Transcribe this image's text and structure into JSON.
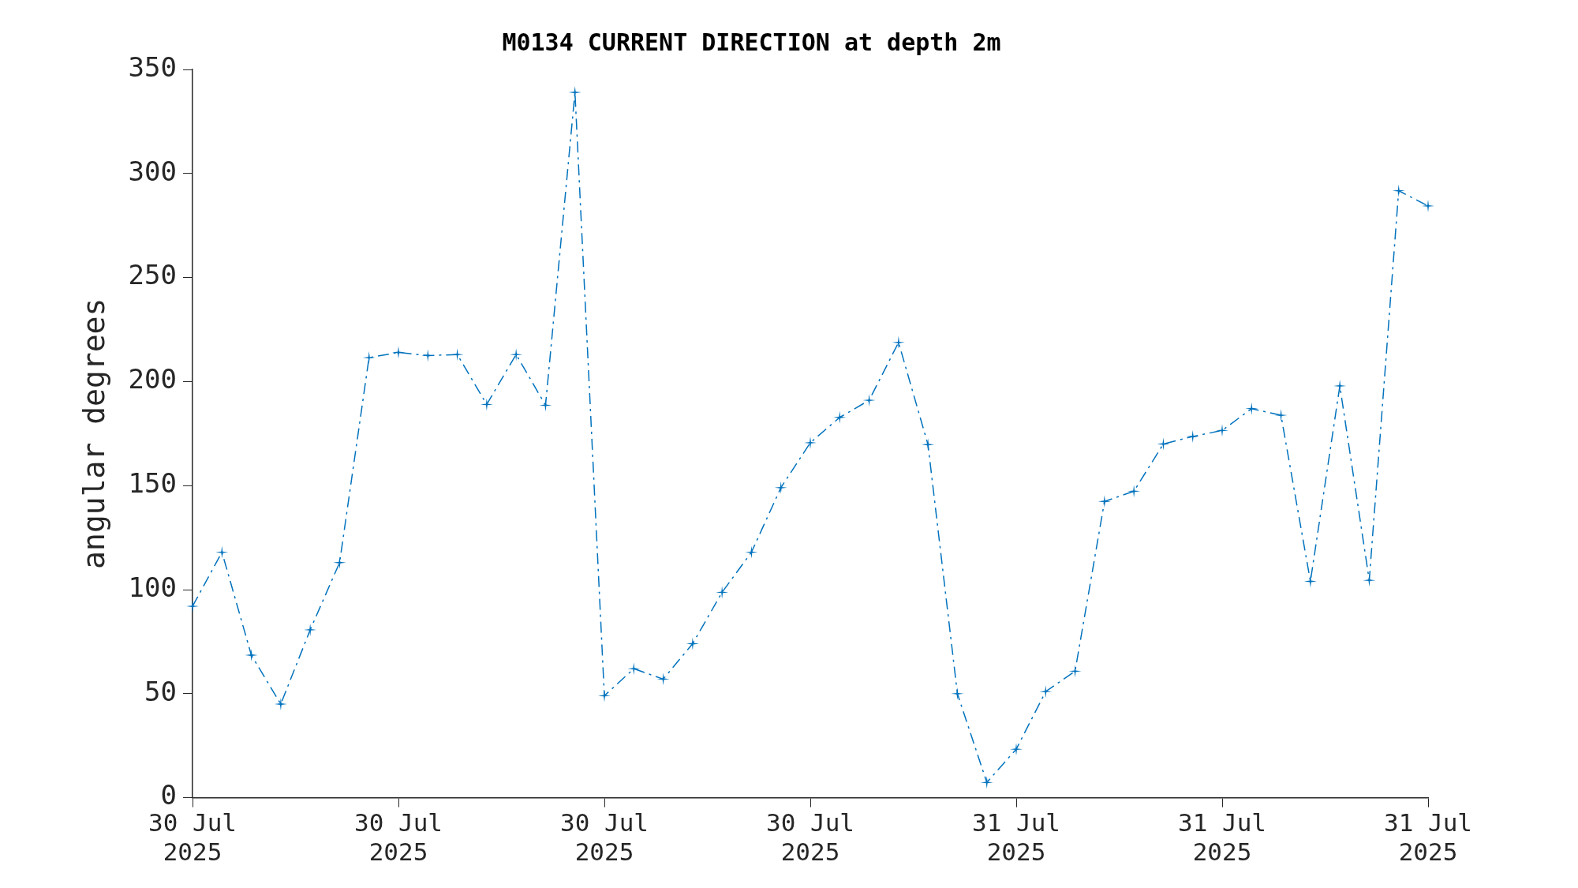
{
  "chart_data": {
    "type": "line",
    "title": "M0134 CURRENT DIRECTION at depth 2m",
    "ylabel": "angular degrees",
    "categories": [
      "30 Jul\n2025",
      null,
      null,
      null,
      null,
      null,
      null,
      "30 Jul\n2025",
      null,
      null,
      null,
      null,
      null,
      null,
      "30 Jul\n2025",
      null,
      null,
      null,
      null,
      null,
      null,
      "30 Jul\n2025",
      null,
      null,
      null,
      null,
      null,
      null,
      "31 Jul\n2025",
      null,
      null,
      null,
      null,
      null,
      null,
      "31 Jul\n2025",
      null,
      null,
      null,
      null,
      null,
      null,
      "31 Jul\n2025"
    ],
    "series": [
      {
        "color": "#0072bd",
        "values": [
          92,
          118,
          68.5,
          45,
          80.7,
          113,
          211.5,
          214,
          212.5,
          213,
          189,
          213,
          188.6,
          339,
          49,
          62,
          57,
          74,
          98.7,
          118,
          149,
          170.6,
          182.8,
          191,
          218.8,
          169.7,
          50,
          7.3,
          23.3,
          51,
          60.8,
          142.4,
          147.3,
          170,
          173.6,
          176.5,
          187,
          183.8,
          104,
          197.9,
          104.5,
          291.7,
          284.4
        ]
      }
    ],
    "ylim": [
      0,
      350
    ],
    "yticks": [
      0,
      50,
      100,
      150,
      200,
      250,
      300,
      350
    ],
    "grid": false,
    "legend": false,
    "marker": "star",
    "line_style": "dashed"
  }
}
